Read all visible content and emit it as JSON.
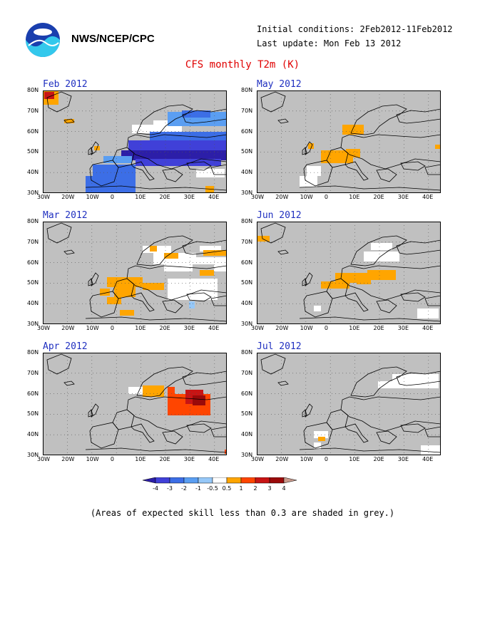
{
  "header": {
    "org": "NWS/NCEP/CPC",
    "initial_conditions": "Initial conditions: 2Feb2012-11Feb2012",
    "last_update": "Last update: Mon Feb 13 2012"
  },
  "title": "CFS monthly T2m (K)",
  "panels": [
    {
      "label": "Feb 2012"
    },
    {
      "label": "May 2012"
    },
    {
      "label": "Mar 2012"
    },
    {
      "label": "Jun 2012"
    },
    {
      "label": "Apr 2012"
    },
    {
      "label": "Jul 2012"
    }
  ],
  "axes": {
    "lat_labels": [
      "80N",
      "70N",
      "60N",
      "50N",
      "40N",
      "30N"
    ],
    "lon_labels": [
      "30W",
      "20W",
      "10W",
      "0",
      "10E",
      "20E",
      "30E",
      "40E"
    ]
  },
  "colorbar": {
    "labels": [
      "-4",
      "-3",
      "-2",
      "-1",
      "-0.5",
      "0.5",
      "1",
      "2",
      "3",
      "4"
    ],
    "colors": [
      "#2c1ea8",
      "#4040d8",
      "#3c6ee6",
      "#5a9ef2",
      "#96c8f8",
      "#ffffff",
      "#ffa500",
      "#ff4500",
      "#c81414",
      "#9a0a0a",
      "#c89a8c"
    ]
  },
  "note": "(Areas of expected skill less than 0.3 are shaded in grey.)",
  "colors": {
    "grey": "#c0c0c0",
    "title_red": "#e00000",
    "panel_blue": "#2030c0"
  }
}
